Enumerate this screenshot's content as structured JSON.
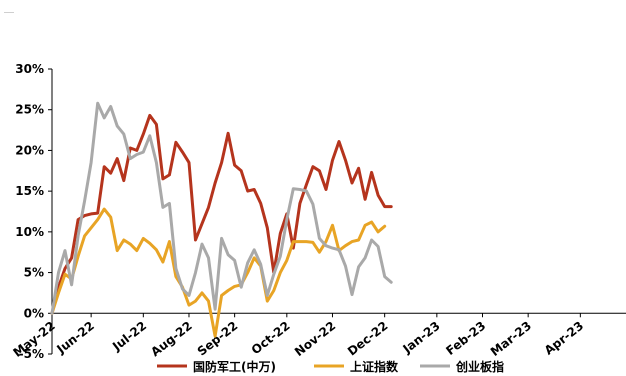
{
  "chart_data": {
    "type": "line",
    "title": "",
    "xlabel": "",
    "ylabel": "",
    "ylim": [
      -0.05,
      0.3
    ],
    "y_ticks": [
      -0.05,
      0.0,
      0.05,
      0.1,
      0.15,
      0.2,
      0.25,
      0.3
    ],
    "y_tick_labels": [
      "-5%",
      "0%",
      "5%",
      "10%",
      "15%",
      "20%",
      "25%",
      "30%"
    ],
    "x_tick_labels": [
      "May-22",
      "Jun-22",
      "Jul-22",
      "Aug-22",
      "Sep-22",
      "Oct-22",
      "Nov-22",
      "Dec-22",
      "Jan-23",
      "Feb-23",
      "Mar-23",
      "Apr-23"
    ],
    "x_tick_positions": [
      0,
      6,
      14,
      21,
      28,
      36,
      43,
      51,
      59,
      66,
      73,
      81
    ],
    "x_range": [
      0,
      88
    ],
    "legend_position": "bottom",
    "grid": false,
    "colors": {
      "series_1": "#b5341d",
      "series_2": "#e8a425",
      "series_3": "#a9a9a9",
      "axis": "#000000"
    },
    "series": [
      {
        "name": "国防军工(中万)",
        "color": "#b5341d",
        "values": [
          0.0,
          0.032,
          0.055,
          0.068,
          0.115,
          0.12,
          0.122,
          0.123,
          0.18,
          0.172,
          0.19,
          0.163,
          0.203,
          0.2,
          0.22,
          0.243,
          0.232,
          0.165,
          0.17,
          0.21,
          0.198,
          0.185,
          0.09,
          0.11,
          0.13,
          0.16,
          0.185,
          0.221,
          0.182,
          0.175,
          0.15,
          0.152,
          0.135,
          0.105,
          0.05,
          0.098,
          0.122,
          0.08,
          0.135,
          0.158,
          0.18,
          0.175,
          0.152,
          0.188,
          0.211,
          0.188,
          0.16,
          0.178,
          0.14,
          0.173,
          0.145,
          0.131,
          0.131
        ]
      },
      {
        "name": "上证指数",
        "color": "#e8a425",
        "values": [
          0.0,
          0.025,
          0.048,
          0.042,
          0.07,
          0.095,
          0.105,
          0.115,
          0.128,
          0.118,
          0.077,
          0.09,
          0.085,
          0.077,
          0.092,
          0.086,
          0.078,
          0.063,
          0.088,
          0.045,
          0.032,
          0.01,
          0.015,
          0.025,
          0.015,
          -0.028,
          0.022,
          0.028,
          0.033,
          0.035,
          0.05,
          0.068,
          0.058,
          0.015,
          0.028,
          0.05,
          0.065,
          0.088,
          0.088,
          0.088,
          0.087,
          0.075,
          0.088,
          0.108,
          0.077,
          0.083,
          0.088,
          0.09,
          0.108,
          0.112,
          0.1,
          0.107
        ]
      },
      {
        "name": "创业板指",
        "color": "#a9a9a9",
        "values": [
          0.0,
          0.05,
          0.077,
          0.035,
          0.095,
          0.138,
          0.185,
          0.258,
          0.24,
          0.254,
          0.23,
          0.22,
          0.19,
          0.195,
          0.198,
          0.218,
          0.185,
          0.13,
          0.135,
          0.055,
          0.03,
          0.022,
          0.05,
          0.085,
          0.068,
          0.005,
          0.092,
          0.072,
          0.065,
          0.032,
          0.062,
          0.078,
          0.06,
          0.022,
          0.048,
          0.07,
          0.115,
          0.153,
          0.152,
          0.15,
          0.134,
          0.092,
          0.083,
          0.08,
          0.078,
          0.058,
          0.023,
          0.057,
          0.068,
          0.09,
          0.082,
          0.045,
          0.038
        ]
      }
    ]
  }
}
